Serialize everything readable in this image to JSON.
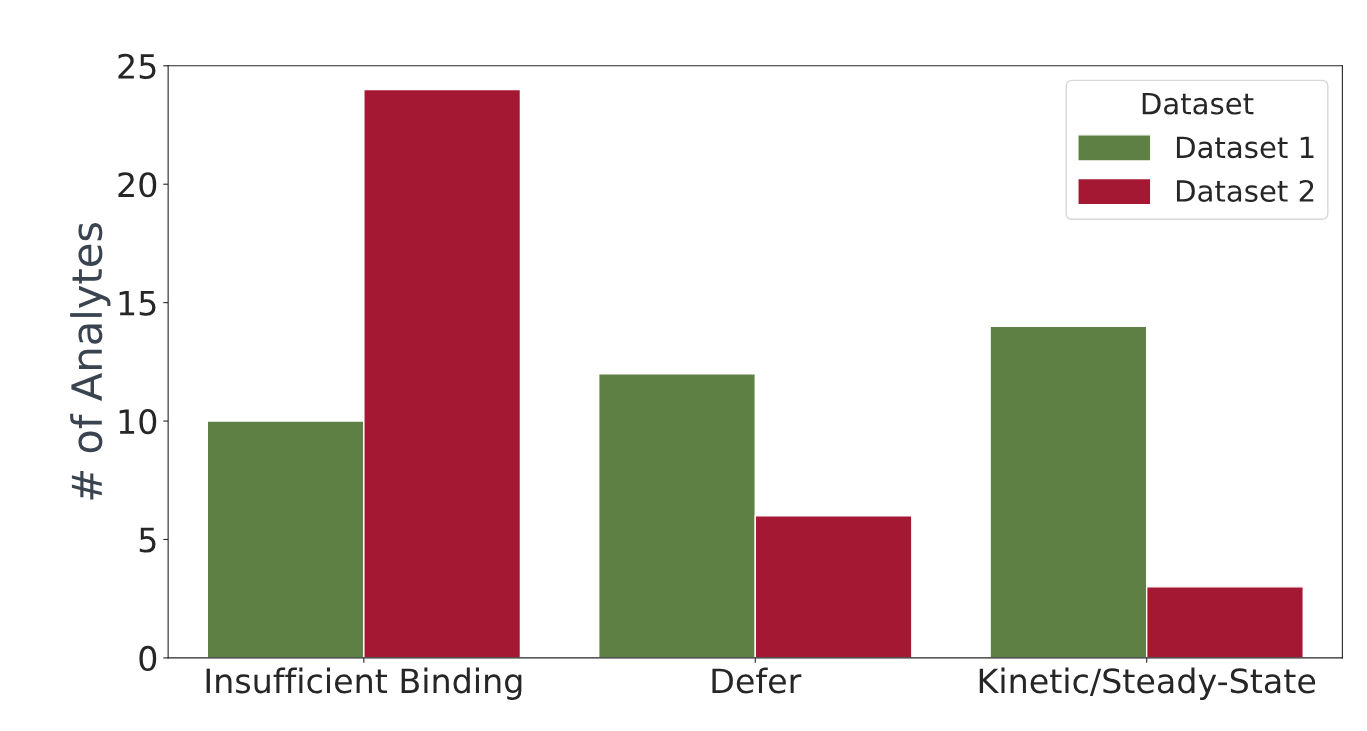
{
  "chart_data": {
    "type": "bar",
    "ylabel": "# of Analytes",
    "legend_title": "Dataset",
    "categories": [
      "Insufficient Binding",
      "Defer",
      "Kinetic/Steady-State"
    ],
    "series": [
      {
        "name": "Dataset 1",
        "color": "#5f8045",
        "values": [
          10,
          12,
          14
        ]
      },
      {
        "name": "Dataset 2",
        "color": "#a51834",
        "values": [
          24,
          6,
          3
        ]
      }
    ],
    "ylim": [
      0,
      25
    ],
    "yticks": [
      0,
      5,
      10,
      15,
      20,
      25
    ],
    "grid": false,
    "legend": "top right"
  }
}
